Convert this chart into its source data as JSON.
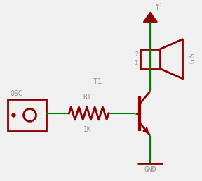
{
  "bg_color": "#f0f0f0",
  "dark_red": "#8b0000",
  "green": "#008000",
  "gray": "#909090",
  "line_width": 1.5,
  "component_lw": 2.0,
  "labels": {
    "osc": "OSC",
    "r1": "R1",
    "r1_val": "1K",
    "t1": "T1",
    "sp1": "SP1",
    "vplus": "V+",
    "gnd": "GND",
    "pin1": "1",
    "pin2": "2"
  },
  "xlim": [
    0,
    288
  ],
  "ylim": [
    0,
    257
  ]
}
